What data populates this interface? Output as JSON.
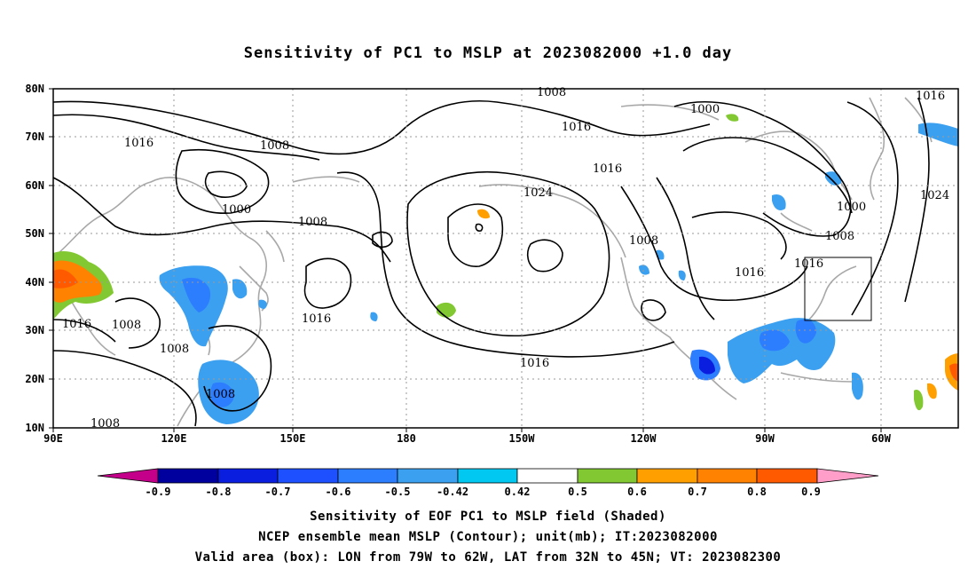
{
  "title": "Sensitivity of PC1 to MSLP at 2023082000 +1.0 day",
  "lat_labels": [
    "80N",
    "70N",
    "60N",
    "50N",
    "40N",
    "30N",
    "20N",
    "10N"
  ],
  "lon_labels": [
    "90E",
    "120E",
    "150E",
    "180",
    "150W",
    "120W",
    "90W",
    "60W"
  ],
  "contour_labels": [
    "1008",
    "1000",
    "1016",
    "1016",
    "1008",
    "1016",
    "1008",
    "1000",
    "1016",
    "1024",
    "1016",
    "1008",
    "1016",
    "1016",
    "1008",
    "1008",
    "1016",
    "1008",
    "1008",
    "1000",
    "1024",
    "1008",
    "1016"
  ],
  "colorbar": {
    "colors": [
      "#c4008a",
      "#00009e",
      "#0a1ee0",
      "#1e50ff",
      "#2d7dff",
      "#3ca0f0",
      "#00c8f0",
      "#ffffff",
      "#82c832",
      "#ffa000",
      "#ff8200",
      "#ff5a00",
      "#ff1e00",
      "#ff0000",
      "#ff9ec8"
    ],
    "labels": [
      "-0.9",
      "-0.8",
      "-0.7",
      "-0.6",
      "-0.5",
      "-0.42",
      "0.42",
      "0.5",
      "0.6",
      "0.7",
      "0.8",
      "0.9"
    ]
  },
  "caption": [
    "Sensitivity of EOF PC1 to MSLP field (Shaded)",
    "NCEP ensemble mean MSLP (Contour); unit(mb); IT:2023082000",
    "Valid area (box): LON from 79W to 62W, LAT from 32N to 45N; VT: 2023082300"
  ]
}
